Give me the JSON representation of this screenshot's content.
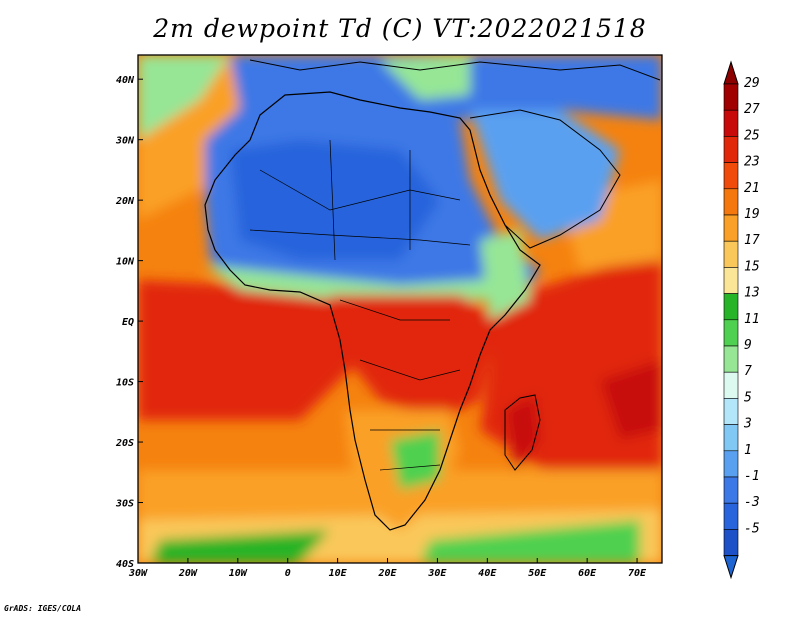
{
  "title": "2m dewpoint Td (C) VT:2022021518",
  "credit": "GrADS: IGES/COLA",
  "map": {
    "lon_labels": [
      "30W",
      "20W",
      "10W",
      "0",
      "10E",
      "20E",
      "30E",
      "40E",
      "50E",
      "60E",
      "70E"
    ],
    "lat_labels": [
      "40N",
      "30N",
      "20N",
      "10N",
      "EQ",
      "10S",
      "20S",
      "30S",
      "40S"
    ],
    "lon_range": [
      -30,
      75
    ],
    "lat_range": [
      -40,
      44
    ]
  },
  "colorbar": {
    "labels": [
      "29",
      "27",
      "25",
      "23",
      "21",
      "19",
      "17",
      "15",
      "13",
      "11",
      "9",
      "7",
      "5",
      "3",
      "1",
      "-1",
      "-3",
      "-5"
    ],
    "colors": [
      "#a00000",
      "#c80a0a",
      "#e1280a",
      "#f04b0a",
      "#f5780f",
      "#faa028",
      "#fac85a",
      "#fae696",
      "#28b428",
      "#50d050",
      "#96e696",
      "#dcfaf0",
      "#b4e6fa",
      "#82c8f5",
      "#5aa0f0",
      "#3c78e6",
      "#2864dc",
      "#1e50c8"
    ],
    "top_color": "#8c0000",
    "bottom_color": "#1e64d2"
  }
}
